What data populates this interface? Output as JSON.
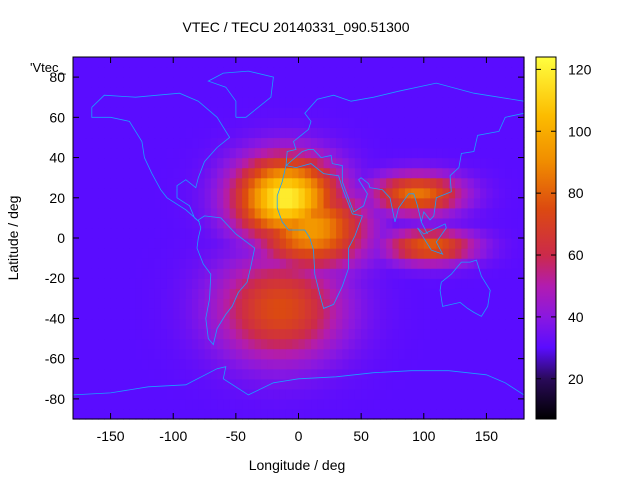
{
  "chart_data": {
    "type": "heatmap",
    "title": "VTEC / TECU 20140331_090.51300",
    "xlabel": "Longitude / deg",
    "ylabel": "Latitude / deg",
    "xlim": [
      -180,
      180
    ],
    "ylim": [
      -90,
      90
    ],
    "x_ticks": [
      -150,
      -100,
      -50,
      0,
      50,
      100,
      150
    ],
    "y_ticks": [
      -80,
      -60,
      -40,
      -20,
      0,
      20,
      40,
      60,
      80
    ],
    "colorbar": {
      "range": [
        7,
        124
      ],
      "ticks": [
        20,
        40,
        60,
        80,
        100,
        120
      ],
      "stops": [
        {
          "v": 7,
          "color": "#000000"
        },
        {
          "v": 20,
          "color": "#2a0a5a"
        },
        {
          "v": 30,
          "color": "#5a0cff"
        },
        {
          "v": 40,
          "color": "#8a18e0"
        },
        {
          "v": 50,
          "color": "#b21cb0"
        },
        {
          "v": 60,
          "color": "#cc2a4a"
        },
        {
          "v": 75,
          "color": "#dc4a10"
        },
        {
          "v": 90,
          "color": "#f08c00"
        },
        {
          "v": 105,
          "color": "#fcbc00"
        },
        {
          "v": 124,
          "color": "#ffff40"
        }
      ]
    },
    "legend_label": "'Vtec_",
    "peaks": [
      {
        "lon": -10,
        "lat": 20,
        "vtec": 120,
        "sx": 28,
        "sy": 14
      },
      {
        "lon": 10,
        "lat": 5,
        "vtec": 95,
        "sx": 30,
        "sy": 14
      },
      {
        "lon": -15,
        "lat": -35,
        "vtec": 75,
        "sx": 35,
        "sy": 18
      },
      {
        "lon": 95,
        "lat": 22,
        "vtec": 85,
        "sx": 25,
        "sy": 7
      },
      {
        "lon": 105,
        "lat": -4,
        "vtec": 80,
        "sx": 25,
        "sy": 6
      }
    ]
  },
  "map": {
    "coastline_color": "#1aa0ff",
    "background_vtec": 30
  }
}
